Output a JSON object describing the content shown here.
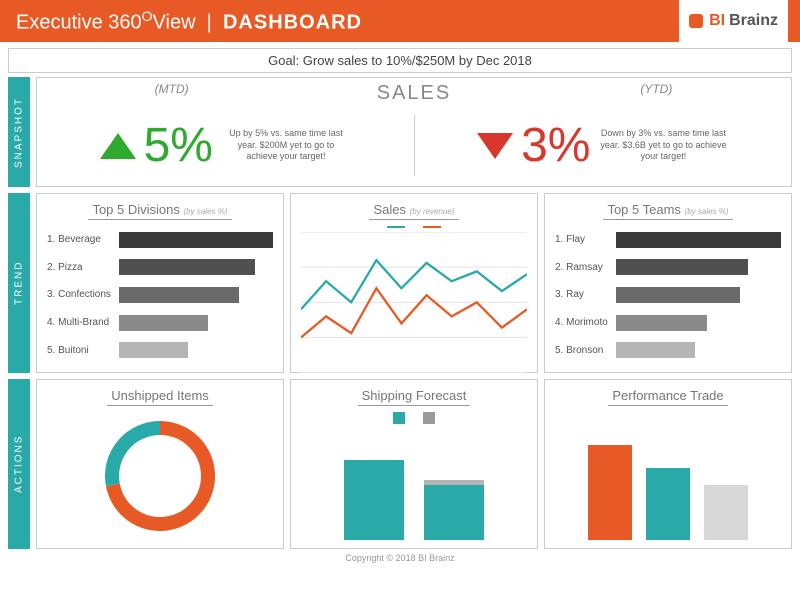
{
  "header": {
    "title_prefix": "Executive 360",
    "degree": "O",
    "view": "View",
    "separator": "|",
    "dashboard": "DASHBOARD",
    "logo_bi": "BI",
    "logo_brainz": "Brainz"
  },
  "goal": "Goal: Grow sales to 10%/$250M by Dec 2018",
  "rail": {
    "snapshot": "SNAPSHOT",
    "trend": "TREND",
    "actions": "ACTIONS"
  },
  "snapshot": {
    "mtd_label": "(MTD)",
    "sales_label": "SALES",
    "ytd_label": "(YTD)",
    "mtd": {
      "value": "5%",
      "direction": "up",
      "color": "#2eab2e",
      "note": "Up by 5% vs. same time last year. $200M yet to go to achieve your target!"
    },
    "ytd": {
      "value": "3%",
      "direction": "down",
      "color": "#d9372b",
      "note": "Down by 3% vs. same time last year. $3.6B yet to go to achieve your target!"
    }
  },
  "divisions": {
    "title": "Top 5 Divisions",
    "sub": "(by sales %)",
    "items": [
      {
        "label": "1. Beverage",
        "value": 100,
        "color": "#3a3a3a"
      },
      {
        "label": "2. Pizza",
        "value": 88,
        "color": "#505050"
      },
      {
        "label": "3. Confections",
        "value": 78,
        "color": "#6a6a6a"
      },
      {
        "label": "4. Multi-Brand",
        "value": 58,
        "color": "#8a8a8a"
      },
      {
        "label": "5. Buitoni",
        "value": 45,
        "color": "#b5b5b5"
      }
    ]
  },
  "sales_chart": {
    "title": "Sales",
    "sub": "(by revenue)",
    "series": [
      {
        "color": "#2aa9a9",
        "points": [
          45,
          65,
          50,
          80,
          60,
          78,
          65,
          72,
          58,
          70
        ]
      },
      {
        "color": "#e85a25",
        "points": [
          25,
          40,
          28,
          60,
          35,
          55,
          40,
          50,
          32,
          45
        ]
      }
    ],
    "ylim": [
      0,
      100
    ],
    "grid_color": "#e5e5e5"
  },
  "teams": {
    "title": "Top 5 Teams",
    "sub": "(by sales %)",
    "items": [
      {
        "label": "1. Flay",
        "value": 100,
        "color": "#3a3a3a"
      },
      {
        "label": "2. Ramsay",
        "value": 80,
        "color": "#505050"
      },
      {
        "label": "3. Ray",
        "value": 75,
        "color": "#6a6a6a"
      },
      {
        "label": "4. Morimoto",
        "value": 55,
        "color": "#8a8a8a"
      },
      {
        "label": "5. Bronson",
        "value": 48,
        "color": "#b5b5b5"
      }
    ]
  },
  "unshipped": {
    "title": "Unshipped Items",
    "segments": [
      {
        "color": "#e85a25",
        "pct": 72
      },
      {
        "color": "#2aa9a9",
        "pct": 28
      }
    ],
    "thickness": 14,
    "radius": 48
  },
  "shipping": {
    "title": "Shipping Forecast",
    "legend": [
      {
        "color": "#2aa9a9"
      },
      {
        "color": "#9a9a9a"
      }
    ],
    "bars": [
      {
        "back_h": 40,
        "back_color": "#b5b5b5",
        "front_h": 80,
        "front_color": "#2aa9a9"
      },
      {
        "back_h": 60,
        "back_color": "#b5b5b5",
        "front_h": 55,
        "front_color": "#2aa9a9"
      }
    ]
  },
  "performance": {
    "title": "Performance Trade",
    "bars": [
      {
        "h": 95,
        "color": "#e85a25"
      },
      {
        "h": 72,
        "color": "#2aa9a9"
      },
      {
        "h": 55,
        "color": "#d8d8d8"
      }
    ]
  },
  "footer": "Copyright © 2018 BI Brainz"
}
